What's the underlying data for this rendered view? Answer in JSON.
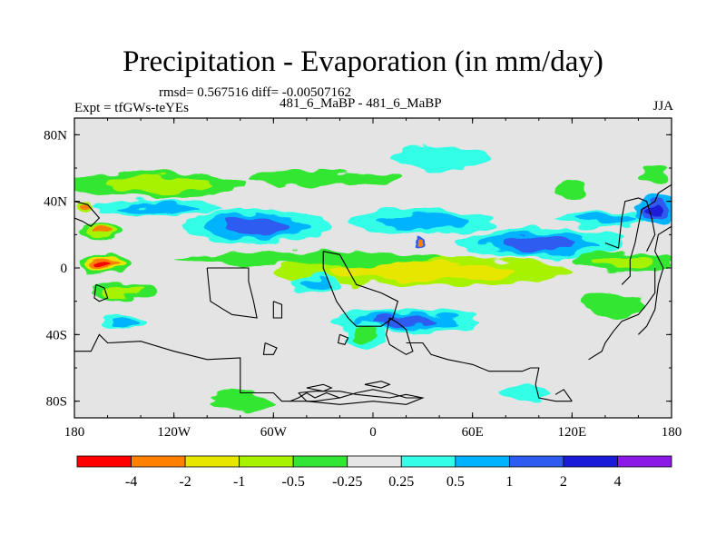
{
  "title": "Precipitation - Evaporation (in mm/day)",
  "stats_line": "rmsd= 0.567516 diff= -0.00507162",
  "experiment_label": "Expt = tfGWs-teYEs",
  "case_label": "481_6_MaBP - 481_6_MaBP",
  "season_label": "JJA",
  "chart_data": {
    "type": "heatmap",
    "title": "Precipitation - Evaporation (in mm/day)",
    "xlabel": "",
    "ylabel": "",
    "xlim": [
      -180,
      180
    ],
    "ylim": [
      -90,
      90
    ],
    "x_ticks": [
      {
        "value": -180,
        "label": "180"
      },
      {
        "value": -120,
        "label": "120W"
      },
      {
        "value": -60,
        "label": "60W"
      },
      {
        "value": 0,
        "label": "0"
      },
      {
        "value": 60,
        "label": "60E"
      },
      {
        "value": 120,
        "label": "120E"
      },
      {
        "value": 180,
        "label": "180"
      }
    ],
    "y_ticks": [
      {
        "value": 80,
        "label": "80N"
      },
      {
        "value": 40,
        "label": "40N"
      },
      {
        "value": 0,
        "label": "0"
      },
      {
        "value": -40,
        "label": "40S"
      },
      {
        "value": -80,
        "label": "80S"
      }
    ],
    "background_color": "#e4e4e4",
    "colorbar": {
      "levels": [
        "-4",
        "-2",
        "-1",
        "-0.5",
        "-0.25",
        "0.25",
        "0.5",
        "1",
        "2",
        "4"
      ],
      "colors": [
        "#ff0000",
        "#ff8000",
        "#e6e600",
        "#a6f200",
        "#33e633",
        "#e6e6e6",
        "#33ffe6",
        "#00b3ff",
        "#2e5cf0",
        "#1a1ad9",
        "#8c1ae6"
      ]
    },
    "fields": [
      {
        "lon": 30,
        "lat": -2,
        "rx": 90,
        "ry": 9,
        "colors": [
          "#a6f200",
          "#e6e600"
        ]
      },
      {
        "lon": -40,
        "lat": 6,
        "rx": 80,
        "ry": 4,
        "colors": [
          "#33e633"
        ]
      },
      {
        "lon": 20,
        "lat": -32,
        "rx": 45,
        "ry": 7,
        "colors": [
          "#33ffe6",
          "#00b3ff",
          "#2e5cf0"
        ]
      },
      {
        "lon": -130,
        "lat": 50,
        "rx": 55,
        "ry": 8,
        "colors": [
          "#33e633",
          "#a6f200"
        ]
      },
      {
        "lon": -30,
        "lat": 54,
        "rx": 45,
        "ry": 5,
        "colors": [
          "#33e633"
        ]
      },
      {
        "lon": 40,
        "lat": 66,
        "rx": 30,
        "ry": 7,
        "colors": [
          "#33ffe6"
        ]
      },
      {
        "lon": -70,
        "lat": 25,
        "rx": 45,
        "ry": 10,
        "colors": [
          "#33ffe6",
          "#00b3ff",
          "#2e5cf0"
        ]
      },
      {
        "lon": 30,
        "lat": 28,
        "rx": 45,
        "ry": 7,
        "colors": [
          "#33ffe6",
          "#00b3ff"
        ]
      },
      {
        "lon": 100,
        "lat": 15,
        "rx": 50,
        "ry": 9,
        "colors": [
          "#33ffe6",
          "#00b3ff",
          "#2e5cf0"
        ]
      },
      {
        "lon": -130,
        "lat": 36,
        "rx": 40,
        "ry": 4,
        "colors": [
          "#33ffe6",
          "#00b3ff"
        ]
      },
      {
        "lon": 140,
        "lat": 30,
        "rx": 30,
        "ry": 5,
        "colors": [
          "#33ffe6",
          "#00b3ff"
        ]
      },
      {
        "lon": 170,
        "lat": 34,
        "rx": 12,
        "ry": 9,
        "colors": [
          "#00b3ff",
          "#2e5cf0",
          "#1a1ad9"
        ]
      },
      {
        "lon": 150,
        "lat": 4,
        "rx": 30,
        "ry": 6,
        "colors": [
          "#33e633",
          "#a6f200"
        ]
      },
      {
        "lon": -162,
        "lat": 2,
        "rx": 16,
        "ry": 6,
        "colors": [
          "#33e633",
          "#e6e600",
          "#ff8000",
          "#ff0000"
        ]
      },
      {
        "lon": -150,
        "lat": -14,
        "rx": 20,
        "ry": 5,
        "colors": [
          "#33e633",
          "#a6f200"
        ]
      },
      {
        "lon": -165,
        "lat": 22,
        "rx": 14,
        "ry": 5,
        "colors": [
          "#33e633",
          "#a6f200",
          "#ff8000"
        ]
      },
      {
        "lon": -175,
        "lat": 37,
        "rx": 5,
        "ry": 4,
        "colors": [
          "#a6f200",
          "#ff8000"
        ]
      },
      {
        "lon": 28,
        "lat": 15,
        "rx": 4,
        "ry": 3,
        "colors": [
          "#2e5cf0",
          "#ff8000"
        ]
      },
      {
        "lon": -35,
        "lat": -10,
        "rx": 15,
        "ry": 6,
        "colors": [
          "#33ffe6",
          "#00b3ff"
        ]
      },
      {
        "lon": -5,
        "lat": -40,
        "rx": 12,
        "ry": 8,
        "colors": [
          "#33ffe6",
          "#33e633"
        ]
      },
      {
        "lon": -80,
        "lat": -80,
        "rx": 20,
        "ry": 5,
        "colors": [
          "#33e633"
        ]
      },
      {
        "lon": 90,
        "lat": -75,
        "rx": 15,
        "ry": 4,
        "colors": [
          "#33ffe6"
        ]
      },
      {
        "lon": -150,
        "lat": -32,
        "rx": 12,
        "ry": 4,
        "colors": [
          "#33ffe6",
          "#00b3ff"
        ]
      },
      {
        "lon": 145,
        "lat": -22,
        "rx": 20,
        "ry": 7,
        "colors": [
          "#33e633"
        ]
      },
      {
        "lon": 170,
        "lat": 55,
        "rx": 10,
        "ry": 5,
        "colors": [
          "#33e633"
        ]
      },
      {
        "lon": 120,
        "lat": 48,
        "rx": 10,
        "ry": 5,
        "colors": [
          "#33e633"
        ]
      }
    ],
    "coastlines": [
      [
        [
          -180,
          -50
        ],
        [
          -170,
          -50
        ],
        [
          -165,
          -40
        ],
        [
          -160,
          -45
        ],
        [
          -140,
          -44
        ],
        [
          -120,
          -50
        ],
        [
          -100,
          -55
        ],
        [
          -80,
          -54
        ],
        [
          -80,
          -75
        ],
        [
          -60,
          -75
        ],
        [
          -55,
          -80
        ],
        [
          -35,
          -80
        ],
        [
          -20,
          -78
        ]
      ],
      [
        [
          -100,
          0
        ],
        [
          -98,
          -20
        ],
        [
          -90,
          -25
        ],
        [
          -85,
          -28
        ],
        [
          -70,
          -30
        ],
        [
          -72,
          -20
        ],
        [
          -75,
          -8
        ],
        [
          -75,
          0
        ],
        [
          -100,
          0
        ]
      ],
      [
        [
          -30,
          10
        ],
        [
          -20,
          8
        ],
        [
          -10,
          -10
        ],
        [
          5,
          -15
        ],
        [
          15,
          -20
        ],
        [
          12,
          -30
        ],
        [
          5,
          -35
        ],
        [
          -10,
          -35
        ],
        [
          -15,
          -30
        ],
        [
          -22,
          -20
        ],
        [
          -30,
          0
        ],
        [
          -30,
          10
        ]
      ],
      [
        [
          10,
          -30
        ],
        [
          15,
          -33
        ],
        [
          20,
          -37
        ],
        [
          22,
          -44
        ],
        [
          24,
          -50
        ],
        [
          20,
          -52
        ],
        [
          15,
          -49
        ],
        [
          10,
          -46
        ],
        [
          8,
          -40
        ],
        [
          10,
          -30
        ]
      ],
      [
        [
          20,
          -45
        ],
        [
          30,
          -45
        ],
        [
          35,
          -52
        ],
        [
          45,
          -55
        ],
        [
          60,
          -58
        ],
        [
          70,
          -62
        ],
        [
          90,
          -62
        ],
        [
          95,
          -60
        ]
      ],
      [
        [
          -50,
          -80
        ],
        [
          -45,
          -78
        ],
        [
          -40,
          -75
        ],
        [
          -35,
          -78
        ],
        [
          -28,
          -75
        ],
        [
          -20,
          -78
        ],
        [
          -10,
          -75
        ],
        [
          0,
          -73
        ],
        [
          10,
          -75
        ],
        [
          20,
          -78
        ],
        [
          30,
          -78
        ]
      ],
      [
        [
          95,
          -60
        ],
        [
          100,
          -60
        ],
        [
          98,
          -70
        ],
        [
          100,
          -78
        ],
        [
          110,
          -80
        ],
        [
          120,
          -80
        ]
      ],
      [
        [
          110,
          -76
        ],
        [
          115,
          -73
        ],
        [
          120,
          -80
        ]
      ],
      [
        [
          130,
          -55
        ],
        [
          138,
          -50
        ],
        [
          140,
          -45
        ],
        [
          145,
          -38
        ],
        [
          150,
          -32
        ],
        [
          160,
          -28
        ],
        [
          165,
          -22
        ],
        [
          170,
          -15
        ],
        [
          170,
          0
        ]
      ],
      [
        [
          160,
          -40
        ],
        [
          165,
          -35
        ],
        [
          170,
          -25
        ],
        [
          172,
          -10
        ],
        [
          175,
          0
        ],
        [
          170,
          10
        ],
        [
          172,
          20
        ],
        [
          180,
          25
        ]
      ],
      [
        [
          150,
          -10
        ],
        [
          155,
          -5
        ],
        [
          155,
          5
        ],
        [
          158,
          15
        ],
        [
          160,
          25
        ],
        [
          162,
          35
        ],
        [
          170,
          40
        ],
        [
          172,
          45
        ],
        [
          180,
          50
        ]
      ],
      [
        [
          140,
          15
        ],
        [
          148,
          12
        ],
        [
          150,
          30
        ],
        [
          152,
          40
        ],
        [
          160,
          42
        ],
        [
          165,
          40
        ],
        [
          168,
          30
        ],
        [
          170,
          20
        ],
        [
          165,
          10
        ]
      ],
      [
        [
          -180,
          40
        ],
        [
          -172,
          38
        ],
        [
          -165,
          30
        ],
        [
          -170,
          25
        ],
        [
          -175,
          28
        ],
        [
          -180,
          30
        ]
      ],
      [
        [
          -167,
          -10
        ],
        [
          -162,
          -12
        ],
        [
          -160,
          -18
        ],
        [
          -165,
          -20
        ],
        [
          -168,
          -18
        ],
        [
          -167,
          -10
        ]
      ],
      [
        [
          -60,
          -20
        ],
        [
          -55,
          -22
        ],
        [
          -55,
          -30
        ],
        [
          -60,
          -30
        ],
        [
          -60,
          -20
        ]
      ],
      [
        [
          -65,
          -45
        ],
        [
          -58,
          -48
        ],
        [
          -60,
          -52
        ],
        [
          -66,
          -52
        ],
        [
          -65,
          -45
        ]
      ],
      [
        [
          -20,
          -40
        ],
        [
          -15,
          -42
        ],
        [
          -17,
          -46
        ],
        [
          -21,
          -45
        ],
        [
          -20,
          -40
        ]
      ],
      [
        [
          -45,
          -75
        ],
        [
          -35,
          -74
        ],
        [
          -20,
          -74
        ],
        [
          -10,
          -76
        ],
        [
          0,
          -77
        ],
        [
          10,
          -78
        ],
        [
          20,
          -76
        ],
        [
          30,
          -78
        ],
        [
          20,
          -82
        ],
        [
          0,
          -80
        ],
        [
          -20,
          -82
        ],
        [
          -40,
          -80
        ],
        [
          -45,
          -75
        ]
      ],
      [
        [
          -5,
          -70
        ],
        [
          5,
          -72
        ],
        [
          10,
          -70
        ],
        [
          5,
          -68
        ],
        [
          -5,
          -70
        ]
      ],
      [
        [
          -40,
          -72
        ],
        [
          -30,
          -70
        ],
        [
          -25,
          -72
        ],
        [
          -30,
          -74
        ],
        [
          -40,
          -72
        ]
      ]
    ]
  }
}
